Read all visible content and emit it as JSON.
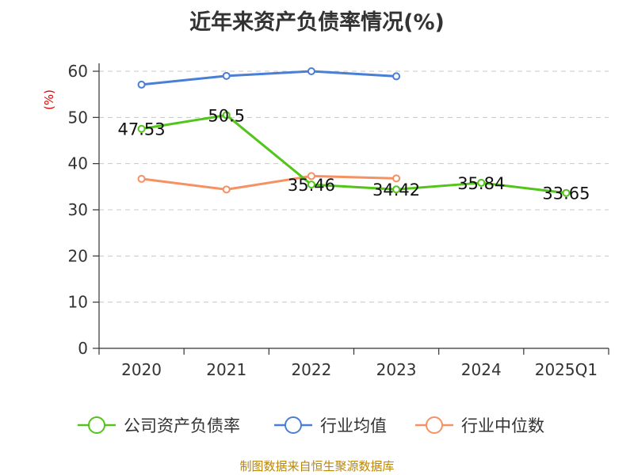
{
  "title": "近年来资产负债率情况(%)",
  "source": "制图数据来自恒生聚源数据库",
  "chart_data": {
    "type": "line",
    "title": "近年来资产负债率情况(%)",
    "ylabel": "(%)",
    "ylim": [
      0,
      60
    ],
    "yticks": [
      0,
      10,
      20,
      30,
      40,
      50,
      60
    ],
    "categories": [
      "2020",
      "2021",
      "2022",
      "2023",
      "2024",
      "2025Q1"
    ],
    "grid": true,
    "legend_position": "bottom",
    "series": [
      {
        "name": "公司资产负债率",
        "color": "#52c41a",
        "values": [
          47.53,
          50.5,
          35.46,
          34.42,
          35.84,
          33.65
        ],
        "labels": [
          "47.53",
          "50.5",
          "35.46",
          "34.42",
          "35.84",
          "33.65"
        ]
      },
      {
        "name": "行业均值",
        "color": "#4a7fd6",
        "values": [
          57.1,
          59.0,
          60.0,
          58.9,
          null,
          null
        ]
      },
      {
        "name": "行业中位数",
        "color": "#f59162",
        "values": [
          36.7,
          34.4,
          37.3,
          36.8,
          null,
          null
        ]
      }
    ]
  }
}
